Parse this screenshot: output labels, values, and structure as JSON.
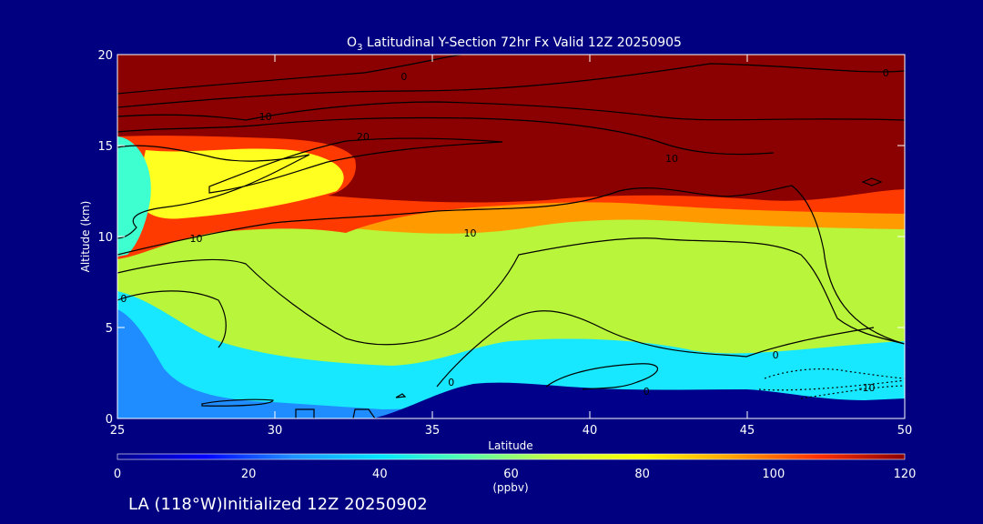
{
  "chart_data": {
    "type": "heatmap",
    "title_prefix": "O",
    "title_sub": "3",
    "title_rest": " Latitudinal Y-Section 72hr  Fx Valid 12Z 20250905",
    "xlabel": "Latitude",
    "ylabel": "Altitude (km)",
    "xlim": [
      25,
      50
    ],
    "ylim": [
      0,
      20
    ],
    "x_ticks": [
      25,
      30,
      35,
      40,
      45,
      50
    ],
    "y_ticks": [
      0,
      5,
      10,
      15,
      20
    ],
    "colorbar": {
      "min": 0,
      "max": 120,
      "ticks": [
        0,
        20,
        40,
        60,
        80,
        100,
        120
      ],
      "unit": "(ppbv)",
      "colors": [
        "#00008b",
        "#0000ff",
        "#1e90ff",
        "#00e5ff",
        "#55ffaa",
        "#c8ff3c",
        "#ffff00",
        "#ffa500",
        "#ff3000",
        "#8b0000"
      ]
    },
    "contour_labels": [
      {
        "text": "0",
        "x": 34.1,
        "y": 18.8
      },
      {
        "text": "0",
        "x": 49.4,
        "y": 19.0
      },
      {
        "text": "10",
        "x": 29.7,
        "y": 16.6
      },
      {
        "text": "20",
        "x": 32.8,
        "y": 15.5
      },
      {
        "text": "10",
        "x": 42.6,
        "y": 14.3
      },
      {
        "text": "10",
        "x": 27.5,
        "y": 9.9
      },
      {
        "text": "10",
        "x": 36.2,
        "y": 10.2
      },
      {
        "text": "0",
        "x": 25.2,
        "y": 6.6
      },
      {
        "text": "0",
        "x": 45.9,
        "y": 3.5
      },
      {
        "text": "0",
        "x": 35.6,
        "y": 2.0
      },
      {
        "text": "0",
        "x": 41.8,
        "y": 1.5
      },
      {
        "text": "-10",
        "x": 48.8,
        "y": 1.7
      }
    ]
  },
  "footer": {
    "caption": "LA (118°W)Initialized 12Z 20250902"
  }
}
